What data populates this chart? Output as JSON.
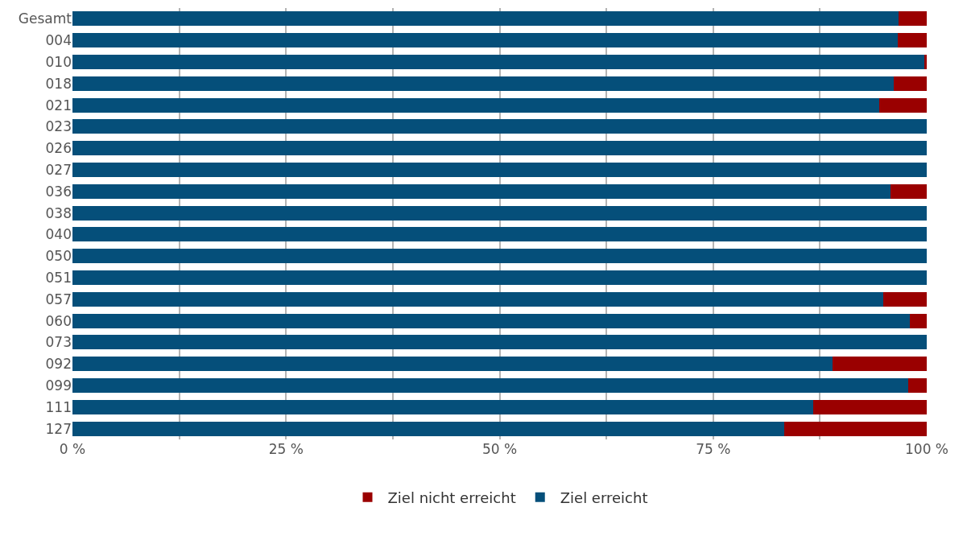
{
  "chart_data": {
    "type": "bar",
    "orientation": "horizontal",
    "stacked": true,
    "categories": [
      "Gesamt",
      "004",
      "010",
      "018",
      "021",
      "023",
      "026",
      "027",
      "036",
      "038",
      "040",
      "050",
      "051",
      "057",
      "060",
      "073",
      "092",
      "099",
      "111",
      "127"
    ],
    "series": [
      {
        "name": "Ziel erreicht",
        "color": "#054f7a",
        "values": [
          96.7,
          96.6,
          99.7,
          96.1,
          94.4,
          100,
          100,
          100,
          95.8,
          100,
          100,
          100,
          100,
          94.9,
          98.0,
          100,
          89.0,
          97.8,
          86.7,
          83.3
        ]
      },
      {
        "name": "Ziel nicht erreicht",
        "color": "#9a0000",
        "values": [
          3.3,
          3.4,
          0.3,
          3.9,
          5.6,
          0,
          0,
          0,
          4.2,
          0,
          0,
          0,
          0,
          5.1,
          2.0,
          0,
          11.0,
          2.2,
          13.3,
          16.7
        ]
      }
    ],
    "xlim": [
      0,
      100
    ],
    "xticks": [
      {
        "value": 0,
        "label": "0 %"
      },
      {
        "value": 12.5,
        "label": null
      },
      {
        "value": 25,
        "label": "25 %"
      },
      {
        "value": 37.5,
        "label": null
      },
      {
        "value": 50,
        "label": "50 %"
      },
      {
        "value": 62.5,
        "label": null
      },
      {
        "value": 75,
        "label": "75 %"
      },
      {
        "value": 87.5,
        "label": null
      },
      {
        "value": 100,
        "label": "100 %"
      }
    ],
    "grid": true,
    "legend": "bottom"
  }
}
